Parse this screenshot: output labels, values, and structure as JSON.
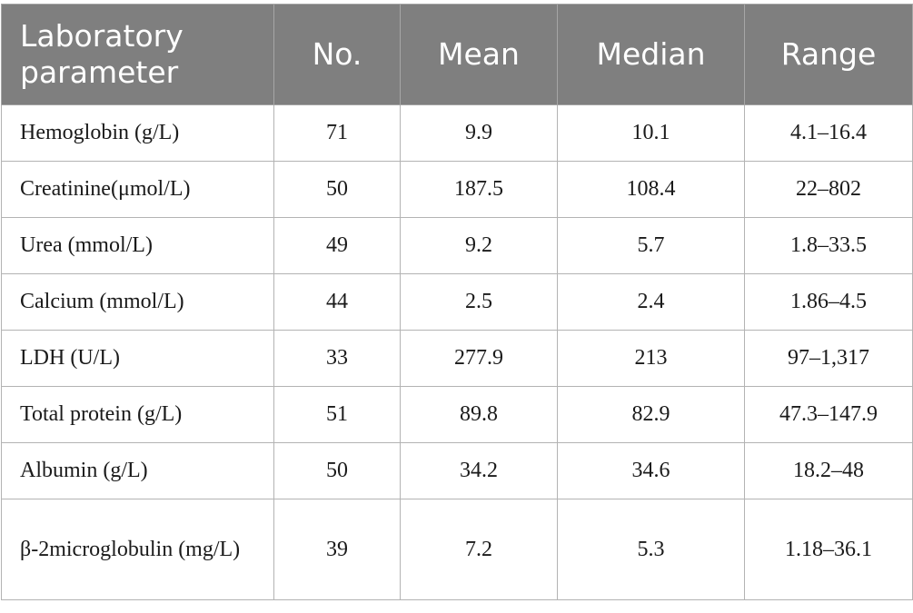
{
  "table": {
    "headers": [
      "Laboratory parameter",
      "No.",
      "Mean",
      "Median",
      "Range"
    ],
    "rows": [
      {
        "parameter": "Hemoglobin (g/L)",
        "no": "71",
        "mean": "9.9",
        "median": "10.1",
        "range": "4.1–16.4"
      },
      {
        "parameter": "Creatinine(μmol/L)",
        "no": "50",
        "mean": "187.5",
        "median": "108.4",
        "range": "22–802"
      },
      {
        "parameter": "Urea (mmol/L)",
        "no": "49",
        "mean": "9.2",
        "median": "5.7",
        "range": "1.8–33.5"
      },
      {
        "parameter": "Calcium (mmol/L)",
        "no": "44",
        "mean": "2.5",
        "median": "2.4",
        "range": "1.86–4.5"
      },
      {
        "parameter": "LDH (U/L)",
        "no": "33",
        "mean": "277.9",
        "median": "213",
        "range": "97–1,317"
      },
      {
        "parameter": "Total protein (g/L)",
        "no": "51",
        "mean": "89.8",
        "median": "82.9",
        "range": "47.3–147.9"
      },
      {
        "parameter": "Albumin (g/L)",
        "no": "50",
        "mean": "34.2",
        "median": "34.6",
        "range": "18.2–48"
      },
      {
        "parameter": "β-2microglobulin (mg/L)",
        "no": "39",
        "mean": "7.2",
        "median": "5.3",
        "range": "1.18–36.1"
      }
    ]
  },
  "colors": {
    "header_background": "#7f7f7f",
    "header_text": "#ffffff",
    "border": "#b3b3b3",
    "body_text": "#1a1a1a"
  }
}
